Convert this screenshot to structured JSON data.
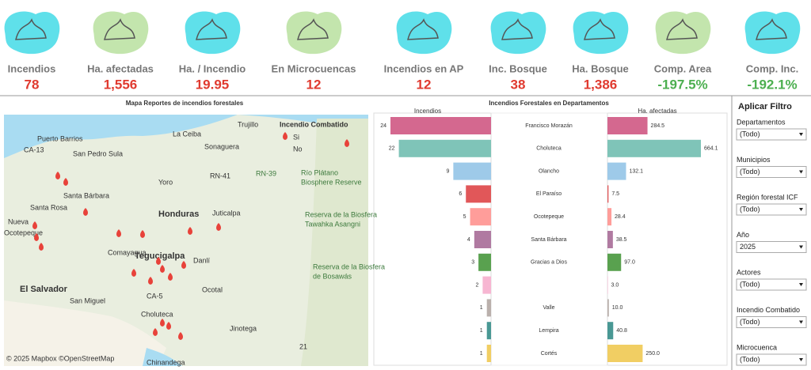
{
  "kpis": [
    {
      "label": "Incendios",
      "value": "78",
      "icon": "cyan",
      "tone": "red"
    },
    {
      "label": "Ha. afectadas",
      "value": "1,556",
      "icon": "green",
      "tone": "red"
    },
    {
      "label": "Ha. / Incendio",
      "value": "19.95",
      "icon": "cyan",
      "tone": "red"
    },
    {
      "label": "En Microcuencas",
      "value": "12",
      "icon": "green",
      "tone": "red"
    },
    {
      "label": "Incendios en AP",
      "value": "12",
      "icon": "cyan",
      "tone": "red"
    },
    {
      "label": "Inc. Bosque",
      "value": "38",
      "icon": "cyan",
      "tone": "red"
    },
    {
      "label": "Ha. Bosque",
      "value": "1,386",
      "icon": "cyan",
      "tone": "red"
    },
    {
      "label": "Comp. Area",
      "value": "-197.5%",
      "icon": "green",
      "tone": "green"
    },
    {
      "label": "Comp. Inc.",
      "value": "-192.1%",
      "icon": "cyan",
      "tone": "green"
    }
  ],
  "map": {
    "title": "Mapa Reportes de incendios forestales",
    "labels": [
      "Incendio Combatido",
      "Si",
      "No",
      "Trujillo",
      "La Ceiba",
      "Puerto Barrios",
      "Sonaguera",
      "CA-13",
      "San Pedro Sula",
      "RN-41",
      "RN-39",
      "Río Plátano",
      "Biosphere Reserve",
      "Yoro",
      "Santa Bárbara",
      "Santa Rosa",
      "Honduras",
      "Juticalpa",
      "Reserva de la Biosfera",
      "Tawahka Asangni",
      "Nueva",
      "Ocotepeque",
      "Comayagua",
      "Tegucigalpa",
      "Danlí",
      "Reserva de la Biosfera",
      "de Bosawás",
      "El Salvador",
      "San Miguel",
      "CA-5",
      "Ocotal",
      "Choluteca",
      "Jinotega",
      "Chinandega",
      "21",
      "© 2025 Mapbox ©OpenStreetMap"
    ]
  },
  "departments": {
    "title": "Incendios Forestales en Departamentos",
    "left_header": "Incendios",
    "right_header": "Ha. afectadas",
    "rows": [
      {
        "name": "Francisco Morazán",
        "incendios": 24,
        "ha": 284.5,
        "ha_label": "284.5",
        "color": "#d4688f"
      },
      {
        "name": "Choluteca",
        "incendios": 22,
        "ha": 664.1,
        "ha_label": "664.1",
        "color": "#7fc4b8"
      },
      {
        "name": "Olancho",
        "incendios": 9,
        "ha": 132.1,
        "ha_label": "132.1",
        "color": "#9ecae9"
      },
      {
        "name": "El Paraíso",
        "incendios": 6,
        "ha": 7.5,
        "ha_label": "7.5",
        "color": "#e15759"
      },
      {
        "name": "Ocotepeque",
        "incendios": 5,
        "ha": 28.4,
        "ha_label": "28.4",
        "color": "#ff9d9a"
      },
      {
        "name": "Santa Bárbara",
        "incendios": 4,
        "ha": 38.5,
        "ha_label": "38.5",
        "color": "#b07aa1"
      },
      {
        "name": "Gracias a Dios",
        "incendios": 3,
        "ha": 97,
        "ha_label": "97.0",
        "color": "#59a14f"
      },
      {
        "name": null,
        "incendios": 2,
        "ha": 3,
        "ha_label": "3.0",
        "color": "#f7b6d2"
      },
      {
        "name": "Valle",
        "incendios": 1,
        "ha": 10,
        "ha_label": "10.0",
        "color": "#bab0ac"
      },
      {
        "name": "Lempira",
        "incendios": 1,
        "ha": 40.8,
        "ha_label": "40.8",
        "color": "#499894"
      },
      {
        "name": "Cortés",
        "incendios": 1,
        "ha": 250,
        "ha_label": "250.0",
        "color": "#f1ce63"
      }
    ]
  },
  "filters": {
    "title": "Aplicar Filtro",
    "items": [
      {
        "label": "Departamentos",
        "value": "(Todo)"
      },
      {
        "label": "Municipios",
        "value": "(Todo)"
      },
      {
        "label": "Región forestal ICF",
        "value": "(Todo)"
      },
      {
        "label": "Año",
        "value": "2025"
      },
      {
        "label": "Actores",
        "value": "(Todo)"
      },
      {
        "label": "Incendio Combatido",
        "value": "(Todo)"
      },
      {
        "label": "Microcuenca",
        "value": "(Todo)"
      }
    ]
  }
}
